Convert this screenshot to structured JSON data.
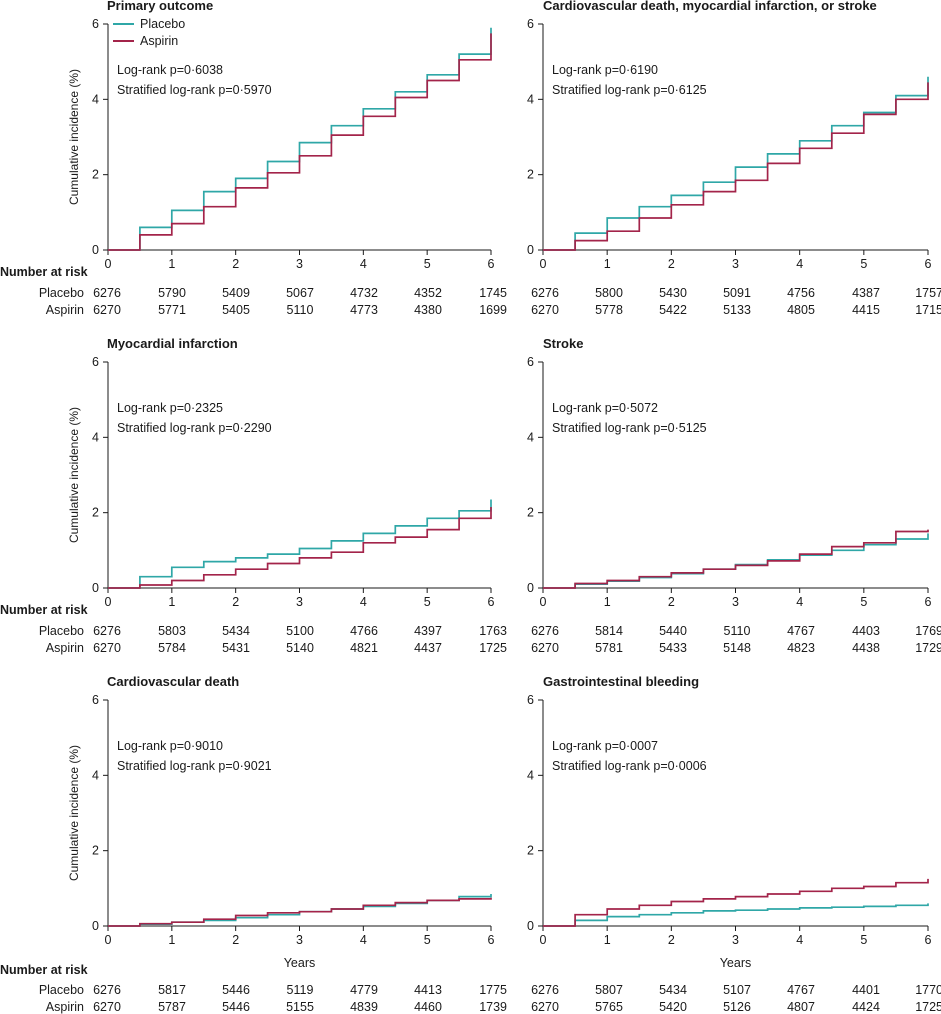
{
  "colors": {
    "placebo": "#2fa7a7",
    "aspirin": "#a3244a",
    "text": "#1a1a1a"
  },
  "legend": {
    "items": [
      "Placebo",
      "Aspirin"
    ]
  },
  "risk_header": "Number at risk",
  "chart_data": [
    {
      "id": "p1",
      "type": "line",
      "title": "Primary outcome",
      "xlabel": "",
      "ylabel": "Cumulative incidence (%)",
      "xlim": [
        0,
        6
      ],
      "ylim": [
        0,
        6
      ],
      "x_ticks": [
        "0",
        "1",
        "2",
        "3",
        "4",
        "5",
        "6"
      ],
      "y_ticks": [
        "0",
        "2",
        "4",
        "6"
      ],
      "stats": [
        "Log-rank p=0·6038",
        "Stratified log-rank p=0·5970"
      ],
      "series": [
        {
          "name": "Placebo",
          "x": [
            0,
            0.5,
            1,
            1.5,
            2,
            2.5,
            3,
            3.5,
            4,
            4.5,
            5,
            5.5,
            6
          ],
          "values": [
            0,
            0.6,
            1.05,
            1.55,
            1.9,
            2.35,
            2.85,
            3.3,
            3.75,
            4.2,
            4.65,
            5.2,
            5.9
          ]
        },
        {
          "name": "Aspirin",
          "x": [
            0,
            0.5,
            1,
            1.5,
            2,
            2.5,
            3,
            3.5,
            4,
            4.5,
            5,
            5.5,
            6
          ],
          "values": [
            0,
            0.4,
            0.7,
            1.15,
            1.65,
            2.05,
            2.5,
            3.05,
            3.55,
            4.05,
            4.5,
            5.05,
            5.75
          ]
        }
      ],
      "risk": {
        "Placebo": [
          "6276",
          "5790",
          "5409",
          "5067",
          "4732",
          "4352",
          "1745"
        ],
        "Aspirin": [
          "6270",
          "5771",
          "5405",
          "5110",
          "4773",
          "4380",
          "1699"
        ]
      }
    },
    {
      "id": "p2",
      "type": "line",
      "title": "Cardiovascular death, myocardial infarction, or stroke",
      "xlabel": "",
      "ylabel": "",
      "xlim": [
        0,
        6
      ],
      "ylim": [
        0,
        6
      ],
      "x_ticks": [
        "0",
        "1",
        "2",
        "3",
        "4",
        "5",
        "6"
      ],
      "y_ticks": [
        "0",
        "2",
        "4",
        "6"
      ],
      "stats": [
        "Log-rank p=0·6190",
        "Stratified log-rank p=0·6125"
      ],
      "series": [
        {
          "name": "Placebo",
          "x": [
            0,
            0.5,
            1,
            1.5,
            2,
            2.5,
            3,
            3.5,
            4,
            4.5,
            5,
            5.5,
            6
          ],
          "values": [
            0,
            0.45,
            0.85,
            1.15,
            1.45,
            1.8,
            2.2,
            2.55,
            2.9,
            3.3,
            3.65,
            4.1,
            4.6
          ]
        },
        {
          "name": "Aspirin",
          "x": [
            0,
            0.5,
            1,
            1.5,
            2,
            2.5,
            3,
            3.5,
            4,
            4.5,
            5,
            5.5,
            6
          ],
          "values": [
            0,
            0.25,
            0.5,
            0.85,
            1.2,
            1.55,
            1.85,
            2.3,
            2.7,
            3.1,
            3.6,
            4.0,
            4.45
          ]
        }
      ],
      "risk": {
        "Placebo": [
          "6276",
          "5800",
          "5430",
          "5091",
          "4756",
          "4387",
          "1757"
        ],
        "Aspirin": [
          "6270",
          "5778",
          "5422",
          "5133",
          "4805",
          "4415",
          "1715"
        ]
      }
    },
    {
      "id": "p3",
      "type": "line",
      "title": "Myocardial infarction",
      "xlabel": "",
      "ylabel": "Cumulative incidence (%)",
      "xlim": [
        0,
        6
      ],
      "ylim": [
        0,
        6
      ],
      "x_ticks": [
        "0",
        "1",
        "2",
        "3",
        "4",
        "5",
        "6"
      ],
      "y_ticks": [
        "0",
        "2",
        "4",
        "6"
      ],
      "stats": [
        "Log-rank p=0·2325",
        "Stratified log-rank p=0·2290"
      ],
      "series": [
        {
          "name": "Placebo",
          "x": [
            0,
            0.5,
            1,
            1.5,
            2,
            2.5,
            3,
            3.5,
            4,
            4.5,
            5,
            5.5,
            6
          ],
          "values": [
            0,
            0.3,
            0.55,
            0.7,
            0.8,
            0.9,
            1.05,
            1.25,
            1.45,
            1.65,
            1.85,
            2.05,
            2.35
          ]
        },
        {
          "name": "Aspirin",
          "x": [
            0,
            0.5,
            1,
            1.5,
            2,
            2.5,
            3,
            3.5,
            4,
            4.5,
            5,
            5.5,
            6
          ],
          "values": [
            0,
            0.08,
            0.2,
            0.35,
            0.5,
            0.65,
            0.8,
            0.95,
            1.2,
            1.35,
            1.55,
            1.85,
            2.15
          ]
        }
      ],
      "risk": {
        "Placebo": [
          "6276",
          "5803",
          "5434",
          "5100",
          "4766",
          "4397",
          "1763"
        ],
        "Aspirin": [
          "6270",
          "5784",
          "5431",
          "5140",
          "4821",
          "4437",
          "1725"
        ]
      }
    },
    {
      "id": "p4",
      "type": "line",
      "title": "Stroke",
      "xlabel": "",
      "ylabel": "",
      "xlim": [
        0,
        6
      ],
      "ylim": [
        0,
        6
      ],
      "x_ticks": [
        "0",
        "1",
        "2",
        "3",
        "4",
        "5",
        "6"
      ],
      "y_ticks": [
        "0",
        "2",
        "4",
        "6"
      ],
      "stats": [
        "Log-rank p=0·5072",
        "Stratified log-rank p=0·5125"
      ],
      "series": [
        {
          "name": "Placebo",
          "x": [
            0,
            0.5,
            1,
            1.5,
            2,
            2.5,
            3,
            3.5,
            4,
            4.5,
            5,
            5.5,
            6
          ],
          "values": [
            0,
            0.1,
            0.18,
            0.28,
            0.38,
            0.5,
            0.62,
            0.75,
            0.87,
            1.0,
            1.15,
            1.3,
            1.45
          ]
        },
        {
          "name": "Aspirin",
          "x": [
            0,
            0.5,
            1,
            1.5,
            2,
            2.5,
            3,
            3.5,
            4,
            4.5,
            5,
            5.5,
            6
          ],
          "values": [
            0,
            0.12,
            0.2,
            0.3,
            0.4,
            0.5,
            0.6,
            0.72,
            0.9,
            1.1,
            1.2,
            1.5,
            1.55
          ]
        }
      ],
      "risk": {
        "Placebo": [
          "6276",
          "5814",
          "5440",
          "5110",
          "4767",
          "4403",
          "1769"
        ],
        "Aspirin": [
          "6270",
          "5781",
          "5433",
          "5148",
          "4823",
          "4438",
          "1729"
        ]
      }
    },
    {
      "id": "p5",
      "type": "line",
      "title": "Cardiovascular death",
      "xlabel": "Years",
      "ylabel": "Cumulative incidence (%)",
      "xlim": [
        0,
        6
      ],
      "ylim": [
        0,
        6
      ],
      "x_ticks": [
        "0",
        "1",
        "2",
        "3",
        "4",
        "5",
        "6"
      ],
      "y_ticks": [
        "0",
        "2",
        "4",
        "6"
      ],
      "stats": [
        "Log-rank p=0·9010",
        "Stratified log-rank p=0·9021"
      ],
      "series": [
        {
          "name": "Placebo",
          "x": [
            0,
            0.5,
            1,
            1.5,
            2,
            2.5,
            3,
            3.5,
            4,
            4.5,
            5,
            5.5,
            6
          ],
          "values": [
            0,
            0.05,
            0.1,
            0.15,
            0.22,
            0.3,
            0.38,
            0.45,
            0.52,
            0.6,
            0.68,
            0.78,
            0.85
          ]
        },
        {
          "name": "Aspirin",
          "x": [
            0,
            0.5,
            1,
            1.5,
            2,
            2.5,
            3,
            3.5,
            4,
            4.5,
            5,
            5.5,
            6
          ],
          "values": [
            0,
            0.06,
            0.1,
            0.18,
            0.28,
            0.35,
            0.38,
            0.45,
            0.55,
            0.62,
            0.68,
            0.72,
            0.75
          ]
        }
      ],
      "risk": {
        "Placebo": [
          "6276",
          "5817",
          "5446",
          "5119",
          "4779",
          "4413",
          "1775"
        ],
        "Aspirin": [
          "6270",
          "5787",
          "5446",
          "5155",
          "4839",
          "4460",
          "1739"
        ]
      }
    },
    {
      "id": "p6",
      "type": "line",
      "title": "Gastrointestinal bleeding",
      "xlabel": "Years",
      "ylabel": "",
      "xlim": [
        0,
        6
      ],
      "ylim": [
        0,
        6
      ],
      "x_ticks": [
        "0",
        "1",
        "2",
        "3",
        "4",
        "5",
        "6"
      ],
      "y_ticks": [
        "0",
        "2",
        "4",
        "6"
      ],
      "stats": [
        "Log-rank p=0·0007",
        "Stratified log-rank p=0·0006"
      ],
      "series": [
        {
          "name": "Placebo",
          "x": [
            0,
            0.5,
            1,
            1.5,
            2,
            2.5,
            3,
            3.5,
            4,
            4.5,
            5,
            5.5,
            6
          ],
          "values": [
            0,
            0.15,
            0.25,
            0.3,
            0.35,
            0.4,
            0.42,
            0.45,
            0.48,
            0.5,
            0.52,
            0.55,
            0.6
          ]
        },
        {
          "name": "Aspirin",
          "x": [
            0,
            0.5,
            1,
            1.5,
            2,
            2.5,
            3,
            3.5,
            4,
            4.5,
            5,
            5.5,
            6
          ],
          "values": [
            0,
            0.3,
            0.45,
            0.55,
            0.65,
            0.72,
            0.78,
            0.85,
            0.92,
            1.0,
            1.05,
            1.15,
            1.25
          ]
        }
      ],
      "risk": {
        "Placebo": [
          "6276",
          "5807",
          "5434",
          "5107",
          "4767",
          "4401",
          "1770"
        ],
        "Aspirin": [
          "6270",
          "5765",
          "5420",
          "5126",
          "4807",
          "4424",
          "1725"
        ]
      }
    }
  ]
}
